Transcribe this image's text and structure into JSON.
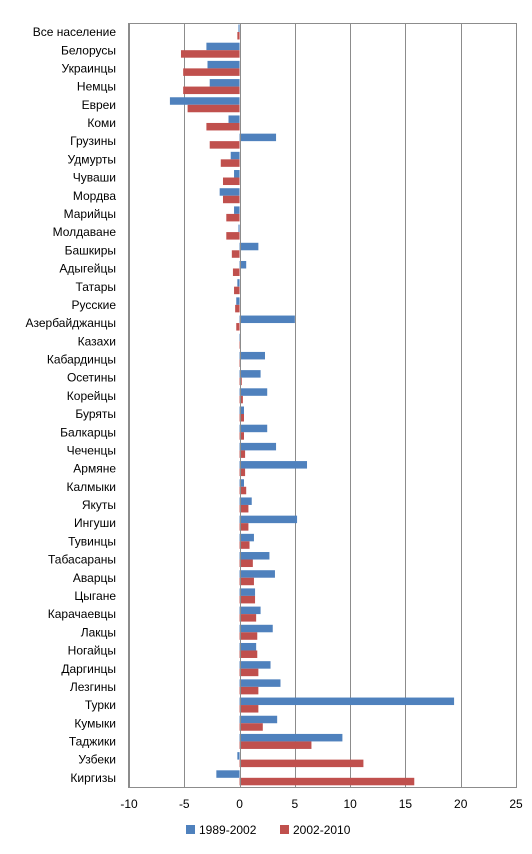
{
  "chart_data": {
    "type": "bar",
    "orientation": "horizontal",
    "categories": [
      "Все население",
      "Белорусы",
      "Украинцы",
      "Немцы",
      "Евреи",
      "Коми",
      "Грузины",
      "Удмурты",
      "Чуваши",
      "Мордва",
      "Марийцы",
      "Молдаване",
      "Башкиры",
      "Адыгейцы",
      "Татары",
      "Русские",
      "Азербайджанцы",
      "Казахи",
      "Кабардинцы",
      "Осетины",
      "Корейцы",
      "Буряты",
      "Балкарцы",
      "Чеченцы",
      "Армяне",
      "Калмыки",
      "Якуты",
      "Ингуши",
      "Тувинцы",
      "Табасараны",
      "Аварцы",
      "Цыгане",
      "Карачаевцы",
      "Лакцы",
      "Ногайцы",
      "Даргинцы",
      "Лезгины",
      "Турки",
      "Кумыки",
      "Таджики",
      "Узбеки",
      "Киргизы"
    ],
    "series": [
      {
        "name": "1989-2002",
        "color": "#4f81bd",
        "values": [
          -0.1,
          -3.0,
          -2.9,
          -2.7,
          -6.3,
          -1.0,
          3.3,
          -0.8,
          -0.5,
          -1.8,
          -0.5,
          -0.1,
          1.7,
          0.6,
          -0.2,
          -0.3,
          5.0,
          0.1,
          2.3,
          1.9,
          2.5,
          0.4,
          2.5,
          3.3,
          6.1,
          0.4,
          1.1,
          5.2,
          1.3,
          2.7,
          3.2,
          1.4,
          1.9,
          3.0,
          1.5,
          2.8,
          3.7,
          19.4,
          3.4,
          9.3,
          -0.2,
          -2.1
        ]
      },
      {
        "name": "2002-2010",
        "color": "#c0504d",
        "values": [
          -0.2,
          -5.3,
          -5.1,
          -5.1,
          -4.7,
          -3.0,
          -2.7,
          -1.7,
          -1.5,
          -1.5,
          -1.2,
          -1.2,
          -0.7,
          -0.6,
          -0.5,
          -0.4,
          -0.3,
          0.0,
          0.0,
          0.2,
          0.3,
          0.4,
          0.4,
          0.5,
          0.5,
          0.6,
          0.8,
          0.8,
          0.9,
          1.2,
          1.3,
          1.4,
          1.5,
          1.6,
          1.6,
          1.7,
          1.7,
          1.7,
          2.1,
          6.5,
          11.2,
          15.8
        ]
      }
    ],
    "xlim": [
      -10,
      25
    ],
    "xticks": [
      "-10",
      "-5",
      "0",
      "5",
      "10",
      "15",
      "20",
      "25"
    ],
    "xtick_values": [
      -10,
      -5,
      0,
      5,
      10,
      15,
      20,
      25
    ],
    "grid": "vertical",
    "legend_position": "bottom",
    "title": "",
    "xlabel": "",
    "ylabel": ""
  }
}
